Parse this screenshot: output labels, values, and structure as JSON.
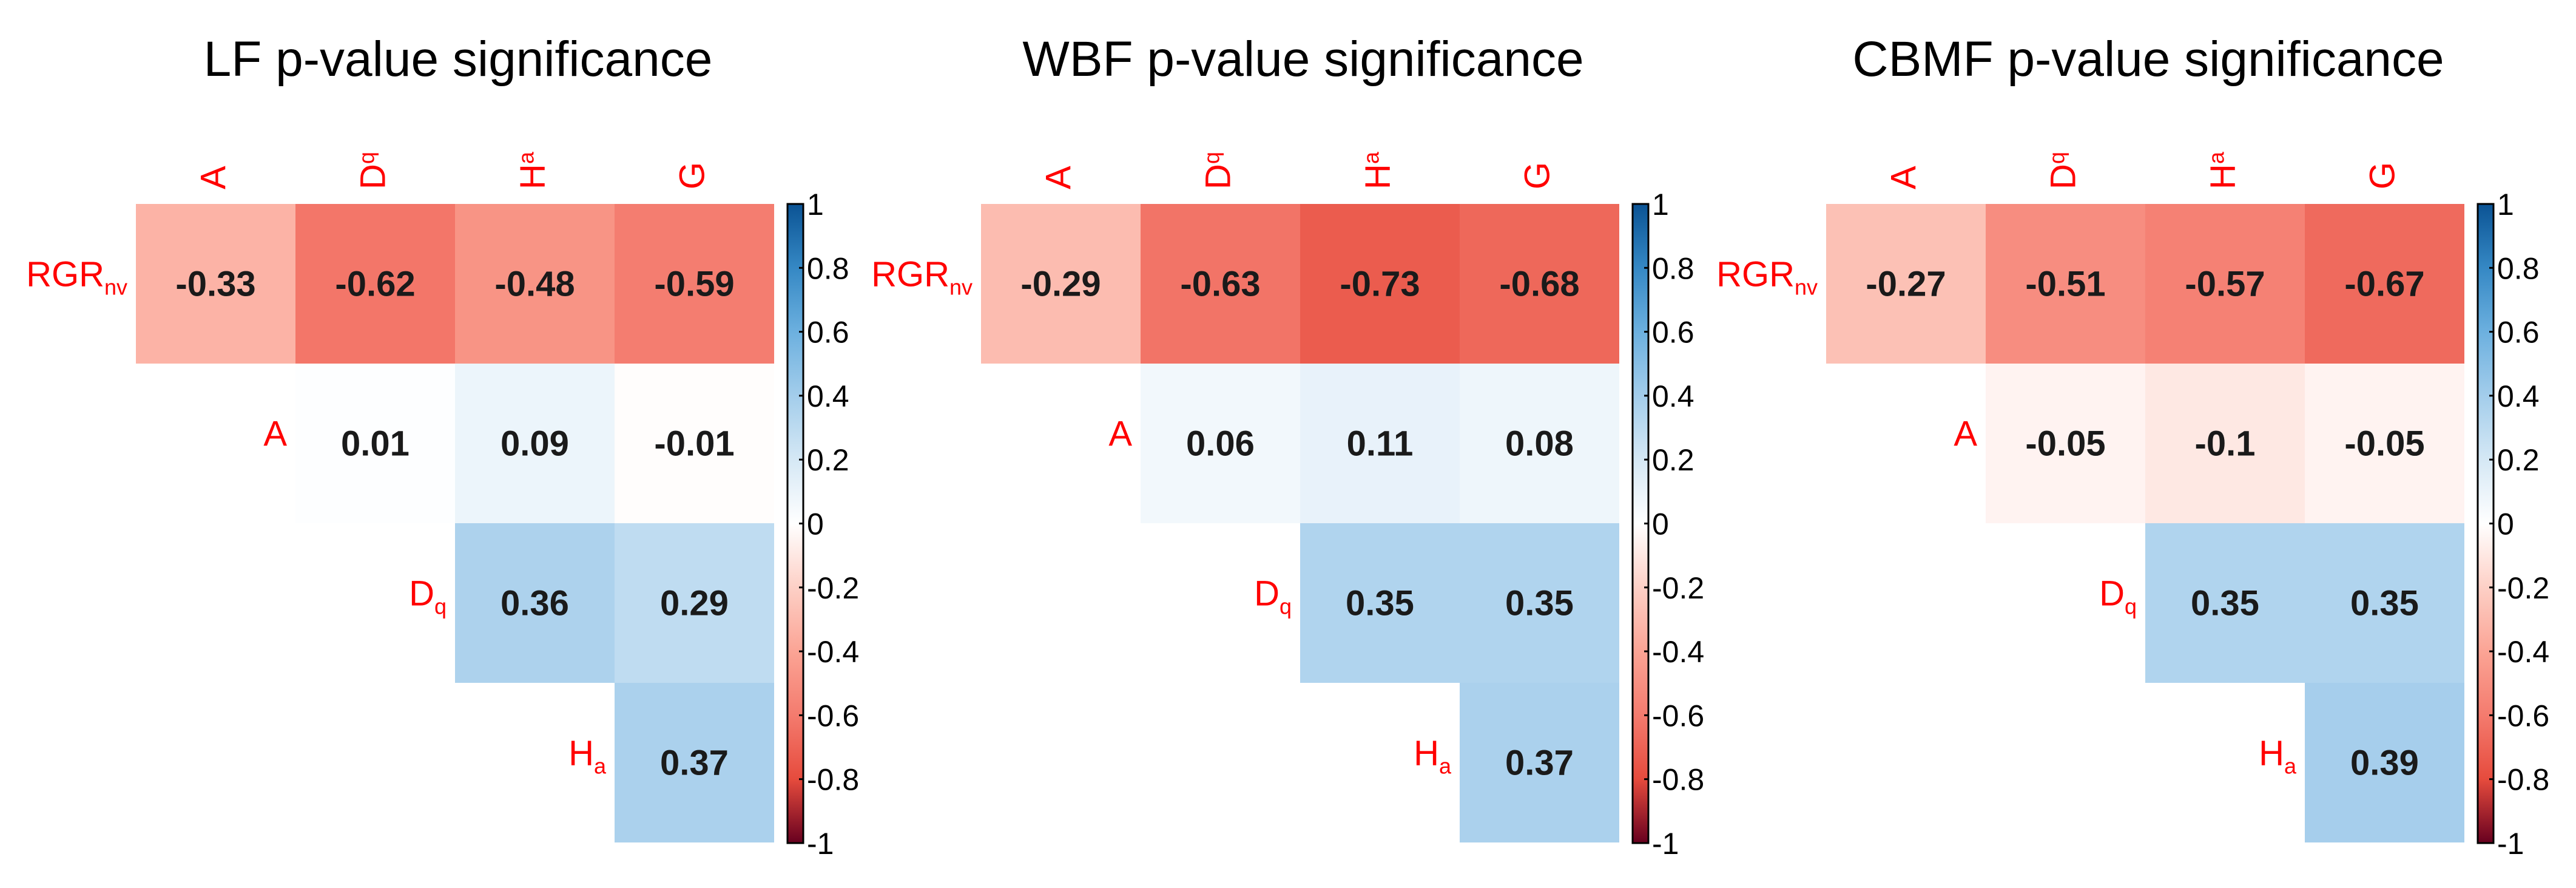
{
  "colors": {
    "label": "#ff0000",
    "scale": [
      [
        -1,
        "#67001f"
      ],
      [
        -0.9999,
        "#d73027"
      ],
      [
        -0.8,
        "#e64b3d"
      ],
      [
        -0.6,
        "#f47b6e"
      ],
      [
        -0.4,
        "#fba495"
      ],
      [
        -0.2,
        "#fdd0c6"
      ],
      [
        0,
        "#ffffff"
      ],
      [
        0.2,
        "#d5e8f5"
      ],
      [
        0.4,
        "#a3cdeb"
      ],
      [
        0.6,
        "#6cb0df"
      ],
      [
        0.8,
        "#3588c4"
      ],
      [
        1,
        "#0b5394"
      ]
    ]
  },
  "chart_data": [
    {
      "type": "heatmap",
      "title": "LF p-value significance",
      "columns": [
        {
          "main": "A",
          "sub": ""
        },
        {
          "main": "D",
          "sub": "q"
        },
        {
          "main": "H",
          "sub": "a"
        },
        {
          "main": "G",
          "sub": ""
        }
      ],
      "rows": [
        {
          "main": "RGR",
          "sub": "nv"
        },
        {
          "main": "A",
          "sub": ""
        },
        {
          "main": "D",
          "sub": "q"
        },
        {
          "main": "H",
          "sub": "a"
        }
      ],
      "values": [
        [
          -0.33,
          -0.62,
          -0.48,
          -0.59
        ],
        [
          null,
          0.01,
          0.09,
          -0.01
        ],
        [
          null,
          null,
          0.36,
          0.29
        ],
        [
          null,
          null,
          null,
          0.37
        ]
      ],
      "value_labels": [
        [
          "-0.33",
          "-0.62",
          "-0.48",
          "-0.59"
        ],
        [
          "",
          "0.01",
          "0.09",
          "-0.01"
        ],
        [
          "",
          "",
          "0.36",
          "0.29"
        ],
        [
          "",
          "",
          "",
          "0.37"
        ]
      ],
      "colorbar": {
        "range": [
          -1,
          1
        ],
        "ticks": [
          "1",
          "0.8",
          "0.6",
          "0.4",
          "0.2",
          "0",
          "-0.2",
          "-0.4",
          "-0.6",
          "-0.8",
          "-1"
        ]
      }
    },
    {
      "type": "heatmap",
      "title": "WBF p-value significance",
      "columns": [
        {
          "main": "A",
          "sub": ""
        },
        {
          "main": "D",
          "sub": "q"
        },
        {
          "main": "H",
          "sub": "a"
        },
        {
          "main": "G",
          "sub": ""
        }
      ],
      "rows": [
        {
          "main": "RGR",
          "sub": "nv"
        },
        {
          "main": "A",
          "sub": ""
        },
        {
          "main": "D",
          "sub": "q"
        },
        {
          "main": "H",
          "sub": "a"
        }
      ],
      "values": [
        [
          -0.29,
          -0.63,
          -0.73,
          -0.68
        ],
        [
          null,
          0.06,
          0.11,
          0.08
        ],
        [
          null,
          null,
          0.35,
          0.35
        ],
        [
          null,
          null,
          null,
          0.37
        ]
      ],
      "value_labels": [
        [
          "-0.29",
          "-0.63",
          "-0.73",
          "-0.68"
        ],
        [
          "",
          "0.06",
          "0.11",
          "0.08"
        ],
        [
          "",
          "",
          "0.35",
          "0.35"
        ],
        [
          "",
          "",
          "",
          "0.37"
        ]
      ],
      "colorbar": {
        "range": [
          -1,
          1
        ],
        "ticks": [
          "1",
          "0.8",
          "0.6",
          "0.4",
          "0.2",
          "0",
          "-0.2",
          "-0.4",
          "-0.6",
          "-0.8",
          "-1"
        ]
      }
    },
    {
      "type": "heatmap",
      "title": "CBMF p-value significance",
      "columns": [
        {
          "main": "A",
          "sub": ""
        },
        {
          "main": "D",
          "sub": "q"
        },
        {
          "main": "H",
          "sub": "a"
        },
        {
          "main": "G",
          "sub": ""
        }
      ],
      "rows": [
        {
          "main": "RGR",
          "sub": "nv"
        },
        {
          "main": "A",
          "sub": ""
        },
        {
          "main": "D",
          "sub": "q"
        },
        {
          "main": "H",
          "sub": "a"
        }
      ],
      "values": [
        [
          -0.27,
          -0.51,
          -0.57,
          -0.67
        ],
        [
          null,
          -0.05,
          -0.1,
          -0.05
        ],
        [
          null,
          null,
          0.35,
          0.35
        ],
        [
          null,
          null,
          null,
          0.39
        ]
      ],
      "value_labels": [
        [
          "-0.27",
          "-0.51",
          "-0.57",
          "-0.67"
        ],
        [
          "",
          "-0.05",
          "-0.1",
          "-0.05"
        ],
        [
          "",
          "",
          "0.35",
          "0.35"
        ],
        [
          "",
          "",
          "",
          "0.39"
        ]
      ],
      "colorbar": {
        "range": [
          -1,
          1
        ],
        "ticks": [
          "1",
          "0.8",
          "0.6",
          "0.4",
          "0.2",
          "0",
          "-0.2",
          "-0.4",
          "-0.6",
          "-0.8",
          "-1"
        ]
      }
    }
  ]
}
